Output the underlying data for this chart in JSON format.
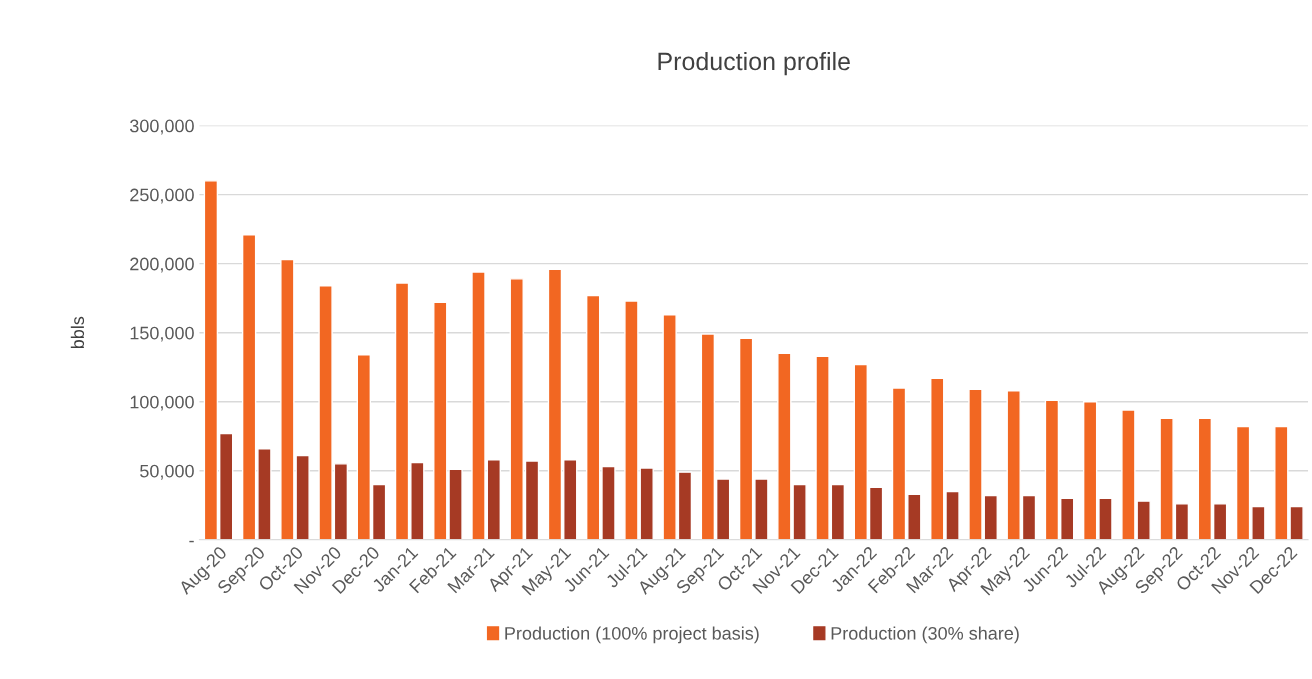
{
  "chart_data": {
    "type": "bar",
    "title": "Production profile",
    "ylabel": "bbls",
    "categories": [
      "Aug-20",
      "Sep-20",
      "Oct-20",
      "Nov-20",
      "Dec-20",
      "Jan-21",
      "Feb-21",
      "Mar-21",
      "Apr-21",
      "May-21",
      "Jun-21",
      "Jul-21",
      "Aug-21",
      "Sep-21",
      "Oct-21",
      "Nov-21",
      "Dec-21",
      "Jan-22",
      "Feb-22",
      "Mar-22",
      "Apr-22",
      "May-22",
      "Jun-22",
      "Jul-22",
      "Aug-22",
      "Sep-22",
      "Oct-22",
      "Nov-22",
      "Dec-22"
    ],
    "series": [
      {
        "name": "Production (100% project basis)",
        "color": "#f26722",
        "values": [
          260000,
          221000,
          203000,
          184000,
          134000,
          186000,
          172000,
          194000,
          189000,
          196000,
          177000,
          173000,
          163000,
          149000,
          146000,
          135000,
          133000,
          127000,
          110000,
          117000,
          109000,
          108000,
          101000,
          100000,
          94000,
          88000,
          88000,
          82000,
          82000
        ]
      },
      {
        "name": "Production (30% share)",
        "color": "#a63a24",
        "values": [
          77000,
          66000,
          61000,
          55000,
          40000,
          56000,
          51000,
          58000,
          57000,
          58000,
          53000,
          52000,
          49000,
          44000,
          44000,
          40000,
          40000,
          38000,
          33000,
          35000,
          32000,
          32000,
          30000,
          30000,
          28000,
          26000,
          26000,
          24000,
          24000
        ]
      }
    ],
    "ylim": [
      0,
      300000
    ],
    "yticks": [
      {
        "value": 0,
        "label": "-"
      },
      {
        "value": 50000,
        "label": "50,000"
      },
      {
        "value": 100000,
        "label": "100,000"
      },
      {
        "value": 150000,
        "label": "150,000"
      },
      {
        "value": 200000,
        "label": "200,000"
      },
      {
        "value": 250000,
        "label": "250,000"
      },
      {
        "value": 300000,
        "label": "300,000"
      }
    ],
    "grid": "y",
    "legend": "bottom"
  }
}
